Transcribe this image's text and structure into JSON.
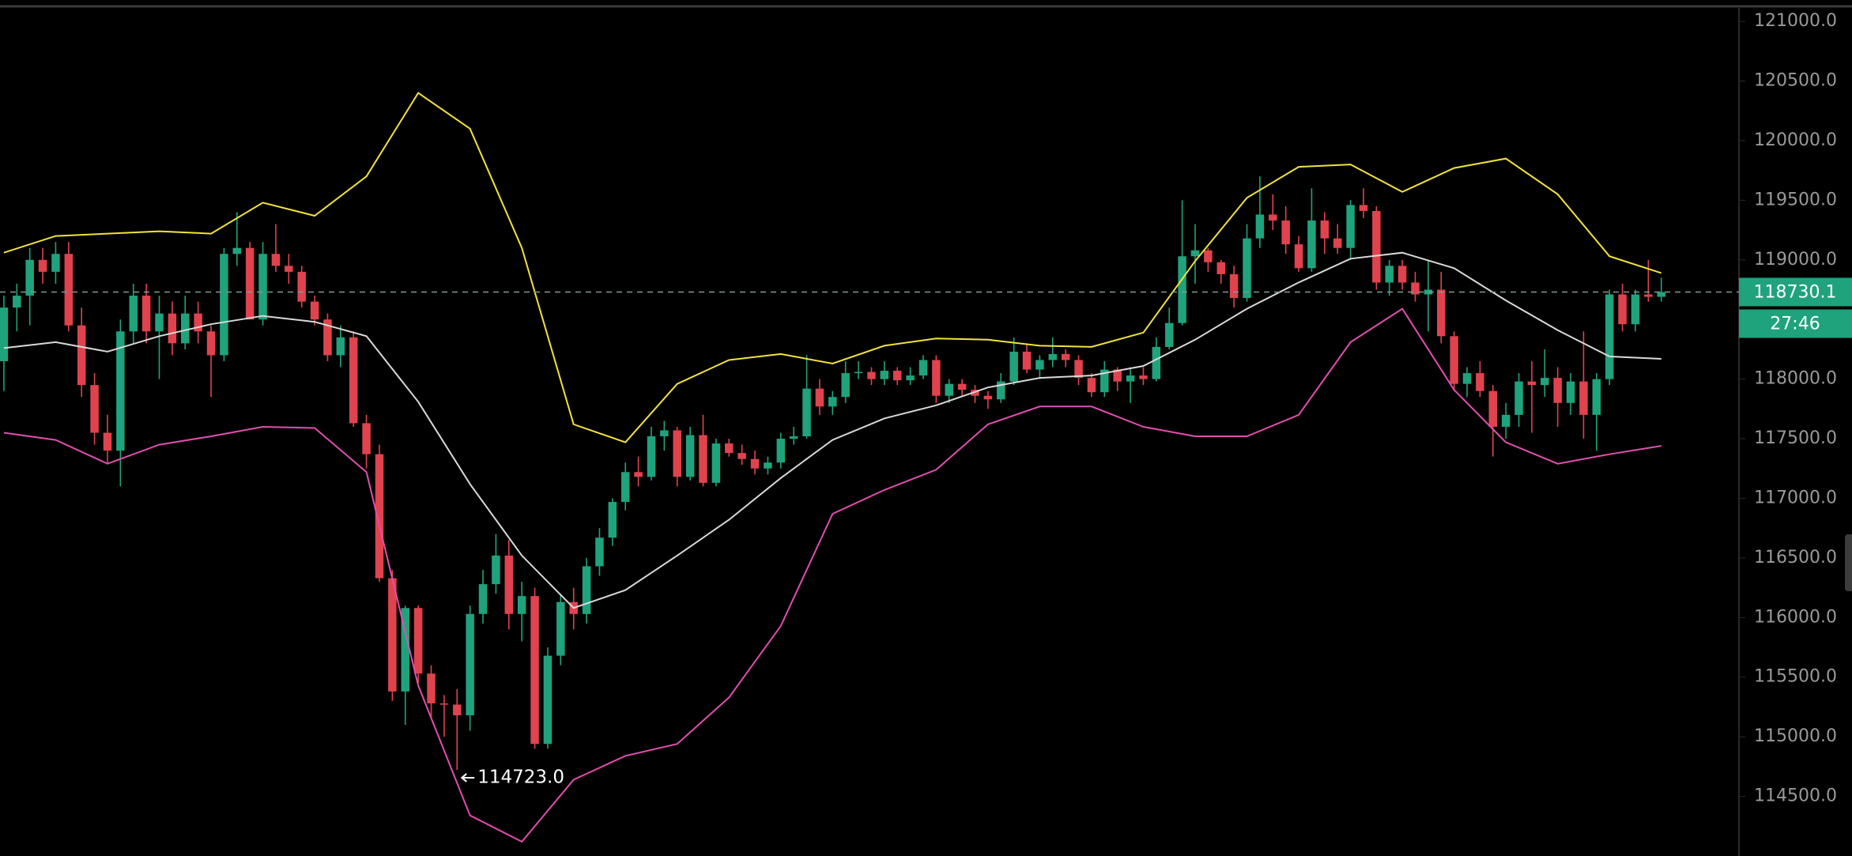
{
  "chart_data": {
    "type": "candlestick",
    "up_color": "#1fa37d",
    "down_color": "#e0434d",
    "xlim": [
      -0.3,
      134
    ],
    "ylim": [
      114000,
      121100
    ],
    "yticks": [
      {
        "value": 121000,
        "label": "121000.0"
      },
      {
        "value": 120500,
        "label": "120500.0"
      },
      {
        "value": 120000,
        "label": "120000.0"
      },
      {
        "value": 119500,
        "label": "119500.0"
      },
      {
        "value": 119000,
        "label": "119000.0"
      },
      {
        "value": 118500,
        "label": "118500.0"
      },
      {
        "value": 118000,
        "label": "118000.0"
      },
      {
        "value": 117500,
        "label": "117500.0"
      },
      {
        "value": 117000,
        "label": "117000.0"
      },
      {
        "value": 116500,
        "label": "116500.0"
      },
      {
        "value": 116000,
        "label": "116000.0"
      },
      {
        "value": 115500,
        "label": "115500.0"
      },
      {
        "value": 115000,
        "label": "115000.0"
      },
      {
        "value": 114500,
        "label": "114500.0"
      }
    ],
    "last_price": 118730.1,
    "countdown": "27:46",
    "low_annotation": {
      "value": 114723,
      "label": "114723.0"
    },
    "ohlc": [
      [
        118150,
        118700,
        117900,
        118600
      ],
      [
        118600,
        118800,
        118400,
        118700
      ],
      [
        118700,
        119100,
        118450,
        119000
      ],
      [
        119000,
        119100,
        118800,
        118900
      ],
      [
        118900,
        119150,
        118800,
        119050
      ],
      [
        119050,
        119150,
        118400,
        118450
      ],
      [
        118450,
        118600,
        117850,
        117950
      ],
      [
        117950,
        118050,
        117450,
        117550
      ],
      [
        117550,
        117700,
        117300,
        117400
      ],
      [
        117400,
        118500,
        117100,
        118400
      ],
      [
        118400,
        118800,
        118300,
        118700
      ],
      [
        118700,
        118800,
        118300,
        118400
      ],
      [
        118400,
        118700,
        118000,
        118550
      ],
      [
        118550,
        118650,
        118200,
        118300
      ],
      [
        118300,
        118700,
        118250,
        118550
      ],
      [
        118550,
        118650,
        118300,
        118400
      ],
      [
        118400,
        118450,
        117850,
        118200
      ],
      [
        118200,
        119100,
        118150,
        119050
      ],
      [
        119050,
        119400,
        118950,
        119100
      ],
      [
        119100,
        119150,
        118500,
        118500
      ],
      [
        118500,
        119150,
        118450,
        119050
      ],
      [
        119050,
        119300,
        118900,
        118950
      ],
      [
        118950,
        119050,
        118800,
        118900
      ],
      [
        118900,
        118950,
        118600,
        118650
      ],
      [
        118650,
        118700,
        118450,
        118500
      ],
      [
        118500,
        118550,
        118150,
        118200
      ],
      [
        118200,
        118450,
        118100,
        118350
      ],
      [
        118350,
        118400,
        117600,
        117630
      ],
      [
        117630,
        117700,
        117250,
        117370
      ],
      [
        117370,
        117450,
        116300,
        116330
      ],
      [
        116330,
        116400,
        115300,
        115380
      ],
      [
        115380,
        116100,
        115100,
        116080
      ],
      [
        116080,
        116100,
        115450,
        115530
      ],
      [
        115530,
        115600,
        115150,
        115280
      ],
      [
        115280,
        115350,
        115000,
        115270
      ],
      [
        115270,
        115400,
        114723,
        115180
      ],
      [
        115180,
        116100,
        115050,
        116030
      ],
      [
        116030,
        116400,
        115950,
        116280
      ],
      [
        116280,
        116700,
        116200,
        116520
      ],
      [
        116520,
        116650,
        115900,
        116030
      ],
      [
        116030,
        116300,
        115800,
        116180
      ],
      [
        116180,
        116250,
        114900,
        114940
      ],
      [
        114940,
        115750,
        114900,
        115680
      ],
      [
        115680,
        116200,
        115600,
        116130
      ],
      [
        116130,
        116250,
        115900,
        116030
      ],
      [
        116030,
        116500,
        115950,
        116430
      ],
      [
        116430,
        116750,
        116350,
        116670
      ],
      [
        116670,
        117000,
        116600,
        116970
      ],
      [
        116970,
        117300,
        116900,
        117220
      ],
      [
        117220,
        117350,
        117100,
        117180
      ],
      [
        117180,
        117600,
        117150,
        117520
      ],
      [
        117520,
        117650,
        117400,
        117570
      ],
      [
        117570,
        117600,
        117100,
        117180
      ],
      [
        117180,
        117600,
        117150,
        117530
      ],
      [
        117530,
        117700,
        117100,
        117130
      ],
      [
        117130,
        117500,
        117100,
        117460
      ],
      [
        117460,
        117500,
        117350,
        117380
      ],
      [
        117380,
        117450,
        117280,
        117330
      ],
      [
        117330,
        117400,
        117200,
        117250
      ],
      [
        117250,
        117350,
        117200,
        117300
      ],
      [
        117300,
        117550,
        117250,
        117500
      ],
      [
        117500,
        117600,
        117450,
        117520
      ],
      [
        117520,
        118200,
        117500,
        117920
      ],
      [
        117920,
        118000,
        117700,
        117770
      ],
      [
        117770,
        117900,
        117700,
        117850
      ],
      [
        117850,
        118150,
        117800,
        118050
      ],
      [
        118050,
        118150,
        118000,
        118060
      ],
      [
        118060,
        118100,
        117950,
        118000
      ],
      [
        118000,
        118150,
        117950,
        118070
      ],
      [
        118070,
        118100,
        117950,
        117990
      ],
      [
        117990,
        118100,
        117950,
        118030
      ],
      [
        118030,
        118200,
        118000,
        118160
      ],
      [
        118160,
        118200,
        117800,
        117860
      ],
      [
        117860,
        118000,
        117800,
        117960
      ],
      [
        117960,
        118000,
        117850,
        117910
      ],
      [
        117910,
        117950,
        117800,
        117860
      ],
      [
        117860,
        117900,
        117750,
        117830
      ],
      [
        117830,
        118050,
        117800,
        117980
      ],
      [
        117980,
        118350,
        117950,
        118230
      ],
      [
        118230,
        118300,
        118050,
        118080
      ],
      [
        118080,
        118200,
        118000,
        118160
      ],
      [
        118160,
        118350,
        118100,
        118210
      ],
      [
        118210,
        118250,
        118100,
        118160
      ],
      [
        118160,
        118200,
        117950,
        118010
      ],
      [
        118010,
        118050,
        117850,
        117890
      ],
      [
        117890,
        118150,
        117850,
        118080
      ],
      [
        118080,
        118100,
        117900,
        117980
      ],
      [
        117980,
        118100,
        117800,
        118030
      ],
      [
        118030,
        118100,
        117950,
        118000
      ],
      [
        118000,
        118350,
        117980,
        118270
      ],
      [
        118270,
        118600,
        118250,
        118470
      ],
      [
        118470,
        119500,
        118450,
        119030
      ],
      [
        119030,
        119300,
        118800,
        119080
      ],
      [
        119080,
        119100,
        118900,
        118980
      ],
      [
        118980,
        119000,
        118800,
        118880
      ],
      [
        118880,
        118950,
        118600,
        118680
      ],
      [
        118680,
        119300,
        118650,
        119180
      ],
      [
        119180,
        119700,
        119100,
        119380
      ],
      [
        119380,
        119550,
        119250,
        119330
      ],
      [
        119330,
        119450,
        119050,
        119130
      ],
      [
        119130,
        119200,
        118900,
        118930
      ],
      [
        118930,
        119600,
        118900,
        119330
      ],
      [
        119330,
        119400,
        119050,
        119180
      ],
      [
        119180,
        119300,
        119050,
        119100
      ],
      [
        119100,
        119500,
        119000,
        119460
      ],
      [
        119460,
        119600,
        119350,
        119410
      ],
      [
        119410,
        119450,
        118750,
        118810
      ],
      [
        118810,
        119000,
        118700,
        118950
      ],
      [
        118950,
        119000,
        118750,
        118810
      ],
      [
        118810,
        118900,
        118650,
        118710
      ],
      [
        118710,
        119000,
        118400,
        118750
      ],
      [
        118750,
        118900,
        118300,
        118360
      ],
      [
        118360,
        118400,
        117900,
        117960
      ],
      [
        117960,
        118100,
        117850,
        118050
      ],
      [
        118050,
        118150,
        117850,
        117900
      ],
      [
        117900,
        117950,
        117350,
        117600
      ],
      [
        117600,
        117800,
        117500,
        117700
      ],
      [
        117700,
        118050,
        117600,
        117980
      ],
      [
        117980,
        118150,
        117550,
        117950
      ],
      [
        117950,
        118250,
        117850,
        118010
      ],
      [
        118010,
        118100,
        117600,
        117800
      ],
      [
        117800,
        118050,
        117700,
        117980
      ],
      [
        117980,
        118400,
        117500,
        117700
      ],
      [
        117700,
        118050,
        117400,
        118000
      ],
      [
        118000,
        118750,
        117950,
        118710
      ],
      [
        118710,
        118800,
        118400,
        118460
      ],
      [
        118460,
        118750,
        118400,
        118710
      ],
      [
        118710,
        119000,
        118650,
        118690
      ],
      [
        118690,
        118850,
        118650,
        118730.1
      ]
    ],
    "overlays": [
      {
        "color": "#f2e33a",
        "x": [
          0,
          4,
          8,
          12,
          16,
          20,
          24,
          28,
          32,
          36,
          40,
          44,
          48,
          52,
          56,
          60,
          64,
          68,
          72,
          76,
          80,
          84,
          88,
          92,
          96,
          100,
          104,
          108,
          112,
          116,
          120,
          124,
          128
        ],
        "values": [
          119060,
          119200,
          119220,
          119240,
          119220,
          119480,
          119370,
          119700,
          120400,
          120100,
          119100,
          117620,
          117470,
          117960,
          118160,
          118210,
          118130,
          118280,
          118340,
          118330,
          118280,
          118270,
          118390,
          118990,
          119520,
          119780,
          119800,
          119570,
          119770,
          119850,
          119550,
          119030,
          118890
        ]
      },
      {
        "color": "#d9d9d9",
        "x": [
          0,
          4,
          8,
          12,
          16,
          20,
          24,
          28,
          32,
          36,
          40,
          44,
          48,
          52,
          56,
          60,
          64,
          68,
          72,
          76,
          80,
          84,
          88,
          92,
          96,
          100,
          104,
          108,
          112,
          116,
          120,
          124,
          128
        ],
        "values": [
          118260,
          118310,
          118230,
          118360,
          118460,
          118530,
          118480,
          118360,
          117810,
          117120,
          116520,
          116080,
          116230,
          116520,
          116820,
          117170,
          117490,
          117670,
          117780,
          117930,
          118010,
          118030,
          118110,
          118330,
          118590,
          118810,
          119010,
          119060,
          118930,
          118660,
          118410,
          118190,
          118170
        ]
      },
      {
        "color": "#e04fae",
        "x": [
          0,
          4,
          8,
          12,
          16,
          20,
          24,
          28,
          32,
          36,
          40,
          44,
          48,
          52,
          56,
          60,
          64,
          68,
          72,
          76,
          80,
          84,
          88,
          92,
          96,
          100,
          104,
          108,
          112,
          116,
          120,
          124,
          128
        ],
        "values": [
          117550,
          117490,
          117290,
          117450,
          117520,
          117600,
          117590,
          117220,
          115430,
          114340,
          114120,
          114640,
          114840,
          114940,
          115330,
          115930,
          116870,
          117070,
          117240,
          117620,
          117770,
          117770,
          117600,
          117520,
          117520,
          117700,
          118310,
          118590,
          117910,
          117470,
          117290,
          117370,
          117440
        ]
      }
    ]
  }
}
